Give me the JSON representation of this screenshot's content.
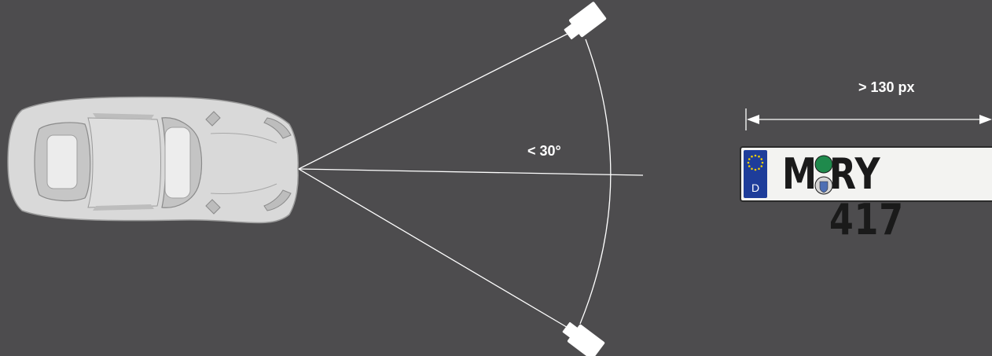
{
  "diagram": {
    "angle_label": "< 30°",
    "width_label": "> 130 px"
  },
  "plate": {
    "country_code": "D",
    "text_left": "M",
    "text_right": "RY 417"
  },
  "colors": {
    "background": "#4d4c4e",
    "lines": "#ffffff",
    "car_body": "#d7d7d7",
    "plate_background": "#f3f3f1",
    "eu_band": "#1e3d9a",
    "inspection_sticker": "#1f8a4c"
  }
}
